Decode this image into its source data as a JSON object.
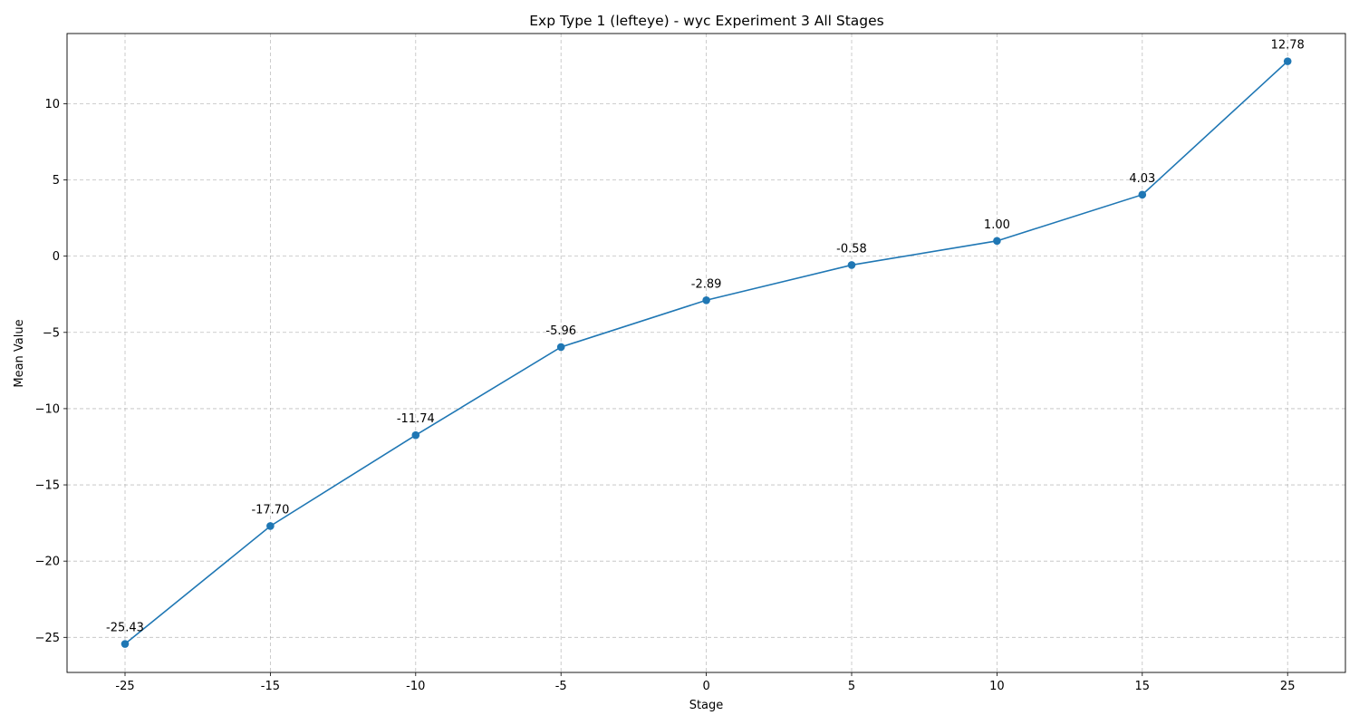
{
  "chart_data": {
    "type": "line",
    "title": "Exp Type 1 (lefteye) - wyc Experiment 3 All Stages",
    "xlabel": "Stage",
    "ylabel": "Mean Value",
    "categories": [
      "-25",
      "-15",
      "-10",
      "-5",
      "0",
      "5",
      "10",
      "15",
      "25"
    ],
    "values": [
      -25.43,
      -17.7,
      -11.74,
      -5.96,
      -2.89,
      -0.58,
      1.0,
      4.03,
      12.78
    ],
    "data_labels": [
      "-25.43",
      "-17.70",
      "-11.74",
      "-5.96",
      "-2.89",
      "-0.58",
      "1.00",
      "4.03",
      "12.78"
    ],
    "yticks": [
      10,
      5,
      0,
      -5,
      -10,
      -15,
      -20,
      -25
    ],
    "ytick_labels": [
      "10",
      "5",
      "0",
      "−5",
      "−10",
      "−15",
      "−20",
      "−25"
    ],
    "ylim": [
      -27.3,
      14.6
    ],
    "grid": true,
    "marker": "circle",
    "series_color": "#1f77b4"
  }
}
